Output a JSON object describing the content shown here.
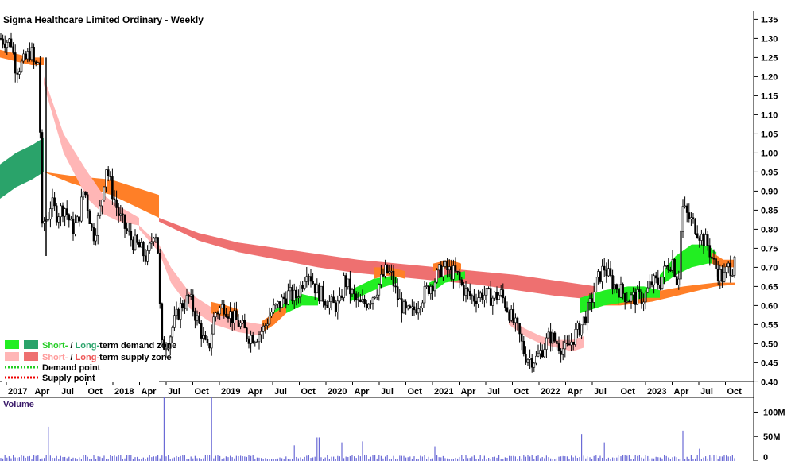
{
  "chart_data": {
    "type": "candlestick",
    "title": "Sigma Healthcare Limited Ordinary - Weekly",
    "volume_title": "Volume",
    "x_tick_labels": [
      "2017",
      "Apr",
      "Jul",
      "Oct",
      "2018",
      "Apr",
      "Jul",
      "Oct",
      "2019",
      "Apr",
      "Jul",
      "Oct",
      "2020",
      "Apr",
      "Jul",
      "Oct",
      "2021",
      "Apr",
      "Jul",
      "Oct",
      "2022",
      "Apr",
      "Jul",
      "Oct",
      "2023",
      "Apr",
      "Jul",
      "Oct"
    ],
    "y_tick_labels": [
      "1.35",
      "1.30",
      "1.25",
      "1.20",
      "1.15",
      "1.10",
      "1.05",
      "1.00",
      "0.95",
      "0.90",
      "0.85",
      "0.80",
      "0.75",
      "0.70",
      "0.65",
      "0.60",
      "0.55",
      "0.50",
      "0.45",
      "0.40"
    ],
    "ylim": [
      0.38,
      1.38
    ],
    "volume_tick_labels": [
      "100M",
      "50M",
      "0"
    ],
    "volume_ylim": [
      0,
      130
    ],
    "legend": [
      {
        "short": "Short-",
        "sep": " / ",
        "long": "Long-",
        "rest": "term demand zone",
        "short_color": "#22ee22",
        "long_color": "#2aa36a"
      },
      {
        "short": "Short-",
        "sep": " / ",
        "long": "Long-",
        "rest": "term supply zone",
        "short_color": "#ffb6b6",
        "long_color": "#ee7070"
      },
      {
        "label": "Demand point",
        "color": "#22cc22"
      },
      {
        "label": "Supply point",
        "color": "#ee0000"
      }
    ],
    "colors": {
      "long_demand": "#2aa36a",
      "short_demand": "#22ee22",
      "long_supply": "#ee7070",
      "short_supply": "#ffb6b6",
      "orange_band": "#ff7f27",
      "volume_bar": "#6b6bd6"
    },
    "price_path": [
      [
        0,
        1.3
      ],
      [
        14,
        1.29
      ],
      [
        20,
        1.22
      ],
      [
        31,
        1.24
      ],
      [
        39,
        1.27
      ],
      [
        44,
        1.22
      ],
      [
        48,
        1.24
      ],
      [
        50,
        1.25
      ],
      [
        51,
        0.77
      ],
      [
        55,
        0.82
      ],
      [
        60,
        0.83
      ],
      [
        64,
        0.87
      ],
      [
        71,
        0.84
      ],
      [
        81,
        0.86
      ],
      [
        91,
        0.8
      ],
      [
        98,
        0.82
      ],
      [
        106,
        0.91
      ],
      [
        112,
        0.84
      ],
      [
        117,
        0.78
      ],
      [
        124,
        0.83
      ],
      [
        129,
        0.89
      ],
      [
        133,
        0.97
      ],
      [
        141,
        0.9
      ],
      [
        149,
        0.84
      ],
      [
        158,
        0.8
      ],
      [
        166,
        0.77
      ],
      [
        176,
        0.75
      ],
      [
        185,
        0.72
      ],
      [
        194,
        0.8
      ],
      [
        198,
        0.78
      ],
      [
        203,
        0.49
      ],
      [
        212,
        0.51
      ],
      [
        218,
        0.55
      ],
      [
        228,
        0.6
      ],
      [
        238,
        0.62
      ],
      [
        245,
        0.58
      ],
      [
        252,
        0.54
      ],
      [
        257,
        0.5
      ],
      [
        262,
        0.48
      ],
      [
        270,
        0.58
      ],
      [
        282,
        0.6
      ],
      [
        292,
        0.57
      ],
      [
        302,
        0.55
      ],
      [
        312,
        0.52
      ],
      [
        322,
        0.52
      ],
      [
        332,
        0.54
      ],
      [
        340,
        0.58
      ],
      [
        350,
        0.6
      ],
      [
        362,
        0.63
      ],
      [
        372,
        0.62
      ],
      [
        380,
        0.66
      ],
      [
        386,
        0.7
      ],
      [
        392,
        0.67
      ],
      [
        398,
        0.64
      ],
      [
        408,
        0.62
      ],
      [
        418,
        0.6
      ],
      [
        427,
        0.6
      ],
      [
        433,
        0.67
      ],
      [
        440,
        0.64
      ],
      [
        446,
        0.62
      ],
      [
        452,
        0.6
      ],
      [
        462,
        0.61
      ],
      [
        470,
        0.63
      ],
      [
        478,
        0.66
      ],
      [
        485,
        0.69
      ],
      [
        492,
        0.68
      ],
      [
        500,
        0.62
      ],
      [
        510,
        0.58
      ],
      [
        518,
        0.58
      ],
      [
        530,
        0.62
      ],
      [
        540,
        0.65
      ],
      [
        548,
        0.67
      ],
      [
        556,
        0.7
      ],
      [
        565,
        0.69
      ],
      [
        575,
        0.68
      ],
      [
        581,
        0.65
      ],
      [
        588,
        0.63
      ],
      [
        596,
        0.62
      ],
      [
        608,
        0.63
      ],
      [
        619,
        0.62
      ],
      [
        630,
        0.63
      ],
      [
        637,
        0.6
      ],
      [
        645,
        0.56
      ],
      [
        652,
        0.53
      ],
      [
        660,
        0.47
      ],
      [
        668,
        0.46
      ],
      [
        675,
        0.46
      ],
      [
        683,
        0.49
      ],
      [
        692,
        0.52
      ],
      [
        702,
        0.5
      ],
      [
        712,
        0.48
      ],
      [
        722,
        0.52
      ],
      [
        732,
        0.55
      ],
      [
        742,
        0.6
      ],
      [
        750,
        0.66
      ],
      [
        760,
        0.7
      ],
      [
        770,
        0.66
      ],
      [
        780,
        0.64
      ],
      [
        790,
        0.62
      ],
      [
        800,
        0.62
      ],
      [
        810,
        0.62
      ],
      [
        820,
        0.66
      ],
      [
        830,
        0.66
      ],
      [
        838,
        0.7
      ],
      [
        846,
        0.72
      ],
      [
        853,
        0.65
      ],
      [
        858,
        0.86
      ],
      [
        866,
        0.83
      ],
      [
        874,
        0.81
      ],
      [
        882,
        0.78
      ],
      [
        890,
        0.76
      ],
      [
        896,
        0.72
      ],
      [
        902,
        0.69
      ],
      [
        910,
        0.67
      ],
      [
        916,
        0.7
      ],
      [
        922,
        0.7
      ],
      [
        925,
        0.76
      ]
    ],
    "bands": {
      "long_demand": {
        "x": [
          0,
          20,
          40,
          55
        ],
        "top": [
          0.97,
          1.0,
          1.02,
          1.04
        ],
        "bottom": [
          0.88,
          0.91,
          0.93,
          0.95
        ]
      },
      "orange_top": {
        "x": [
          0,
          20,
          40,
          55
        ],
        "top": [
          1.27,
          1.26,
          1.25,
          1.25
        ],
        "bottom": [
          1.25,
          1.24,
          1.23,
          1.23
        ]
      },
      "long_orange_1": {
        "x": [
          55,
          90,
          140,
          170,
          200
        ],
        "top": [
          0.95,
          0.94,
          0.93,
          0.91,
          0.89
        ],
        "bottom": [
          0.95,
          0.92,
          0.89,
          0.86,
          0.83
        ]
      },
      "short_supply_1": {
        "x": [
          55,
          80,
          110,
          130,
          150,
          175
        ],
        "top": [
          1.2,
          1.05,
          0.95,
          0.89,
          0.86,
          0.83
        ],
        "bottom": [
          1.18,
          1.0,
          0.88,
          0.84,
          0.82,
          0.81
        ]
      },
      "long_supply": {
        "x": [
          200,
          250,
          300,
          350,
          400,
          450,
          500,
          550,
          600,
          650,
          700,
          750
        ],
        "top": [
          0.83,
          0.79,
          0.765,
          0.75,
          0.735,
          0.72,
          0.71,
          0.7,
          0.69,
          0.68,
          0.665,
          0.65
        ],
        "bottom": [
          0.82,
          0.77,
          0.74,
          0.72,
          0.7,
          0.685,
          0.675,
          0.665,
          0.655,
          0.64,
          0.625,
          0.615
        ]
      },
      "short_supply_2": {
        "x": [
          175,
          200,
          215,
          240,
          270,
          300,
          330
        ],
        "top": [
          0.81,
          0.76,
          0.7,
          0.63,
          0.59,
          0.56,
          0.55
        ],
        "bottom": [
          0.8,
          0.74,
          0.66,
          0.59,
          0.55,
          0.53,
          0.52
        ]
      },
      "short_supply_3": {
        "x": [
          640,
          660,
          680,
          700,
          720,
          735
        ],
        "top": [
          0.57,
          0.54,
          0.52,
          0.51,
          0.51,
          0.52
        ],
        "bottom": [
          0.55,
          0.52,
          0.5,
          0.49,
          0.48,
          0.49
        ]
      },
      "orange_long_2": {
        "x": [
          740,
          780,
          820,
          860,
          900,
          925
        ],
        "top": [
          0.63,
          0.63,
          0.635,
          0.65,
          0.66,
          0.66
        ],
        "bottom": [
          0.6,
          0.6,
          0.61,
          0.63,
          0.65,
          0.655
        ]
      },
      "long_demand_2": {
        "x": [
          730,
          760,
          790,
          810,
          830
        ],
        "top": [
          0.62,
          0.64,
          0.65,
          0.65,
          0.64
        ],
        "bottom": [
          0.58,
          0.6,
          0.61,
          0.62,
          0.62
        ]
      },
      "short_demand_1": {
        "x": [
          340,
          360,
          380,
          400
        ],
        "top": [
          0.58,
          0.61,
          0.63,
          0.62
        ],
        "bottom": [
          0.56,
          0.58,
          0.6,
          0.6
        ]
      },
      "short_demand_2": {
        "x": [
          440,
          470,
          500
        ],
        "top": [
          0.64,
          0.67,
          0.68
        ],
        "bottom": [
          0.61,
          0.64,
          0.66
        ]
      },
      "short_demand_3": {
        "x": [
          540,
          560,
          585
        ],
        "top": [
          0.66,
          0.68,
          0.69
        ],
        "bottom": [
          0.63,
          0.66,
          0.67
        ]
      },
      "short_demand_4": {
        "x": [
          830,
          850,
          870,
          890,
          900
        ],
        "top": [
          0.68,
          0.73,
          0.76,
          0.76,
          0.74
        ],
        "bottom": [
          0.65,
          0.68,
          0.7,
          0.71,
          0.71
        ]
      },
      "orange_short_1": {
        "x": [
          265,
          285,
          300
        ],
        "top": [
          0.61,
          0.6,
          0.59
        ],
        "bottom": [
          0.58,
          0.57,
          0.57
        ]
      },
      "orange_short_2": {
        "x": [
          330,
          345,
          360
        ],
        "top": [
          0.56,
          0.58,
          0.6
        ],
        "bottom": [
          0.53,
          0.55,
          0.58
        ]
      },
      "orange_short_3": {
        "x": [
          470,
          490,
          510
        ],
        "top": [
          0.7,
          0.7,
          0.69
        ],
        "bottom": [
          0.67,
          0.68,
          0.67
        ]
      },
      "orange_short_4": {
        "x": [
          545,
          565,
          580
        ],
        "top": [
          0.71,
          0.72,
          0.71
        ],
        "bottom": [
          0.69,
          0.7,
          0.69
        ]
      },
      "orange_short_5": {
        "x": [
          895,
          910,
          925
        ],
        "top": [
          0.74,
          0.72,
          0.72
        ],
        "bottom": [
          0.71,
          0.7,
          0.7
        ]
      }
    },
    "volume_spikes": [
      [
        60,
        70
      ],
      [
        207,
        130
      ],
      [
        266,
        130
      ],
      [
        370,
        32
      ],
      [
        400,
        48
      ],
      [
        430,
        38
      ],
      [
        455,
        40
      ],
      [
        548,
        30
      ],
      [
        732,
        55
      ],
      [
        760,
        38
      ],
      [
        858,
        62
      ],
      [
        880,
        25
      ]
    ]
  }
}
